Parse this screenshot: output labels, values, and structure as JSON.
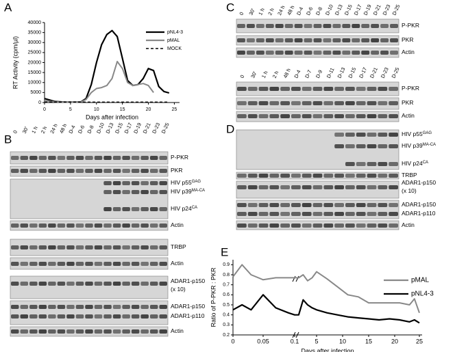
{
  "panel_labels": [
    "A",
    "B",
    "C",
    "D",
    "E"
  ],
  "chart_data": [
    {
      "type": "line",
      "x": [
        0,
        2,
        4,
        6,
        7,
        8,
        9,
        10,
        11,
        12,
        13,
        14,
        15,
        16,
        17,
        18,
        19,
        20,
        21,
        22,
        23,
        24
      ],
      "xlabel": "Days after infection",
      "ylabel": "RT Activity (cpm/µl)",
      "xlim": [
        0,
        26
      ],
      "xticks": [
        0,
        5,
        10,
        15,
        20,
        25
      ],
      "ylim": [
        0,
        40000
      ],
      "yticks": [
        0,
        5000,
        10000,
        15000,
        20000,
        25000,
        30000,
        35000,
        40000
      ],
      "series": [
        {
          "name": "pNL4-3",
          "color": "#000000",
          "values": [
            2000,
            500,
            200,
            200,
            300,
            2000,
            9000,
            20000,
            29000,
            34000,
            36000,
            33000,
            22000,
            11000,
            8500,
            9000,
            12000,
            17000,
            16000,
            8000,
            5500,
            4800
          ]
        },
        {
          "name": "pMAL",
          "color": "#888888",
          "values": [
            1000,
            300,
            200,
            200,
            300,
            1500,
            5000,
            7000,
            7500,
            8500,
            12000,
            20500,
            17000,
            10000,
            8500,
            9000,
            9500,
            8500,
            5000,
            null,
            null,
            null
          ]
        },
        {
          "name": "MOCK",
          "color": "#000000",
          "dash": true,
          "values": [
            200,
            200,
            200,
            200,
            200,
            200,
            200,
            200,
            200,
            200,
            200,
            200,
            200,
            200,
            200,
            200,
            200,
            200,
            200,
            200,
            200,
            200
          ]
        }
      ]
    },
    {
      "type": "line",
      "x": [
        0,
        0.015,
        0.03,
        0.05,
        0.07,
        0.09,
        0.1,
        1,
        2,
        3,
        4,
        5,
        7,
        9,
        11,
        13,
        15,
        17,
        19,
        21,
        23,
        24,
        25
      ],
      "xlabel": "Days after infection",
      "ylabel": "Ratio of P-PKR : PKR",
      "xlim": [
        0,
        25
      ],
      "xticks": [
        0,
        0.05,
        0.1,
        5,
        10,
        15,
        20,
        25
      ],
      "ylim": [
        0.2,
        0.95
      ],
      "yticks": [
        0.2,
        0.3,
        0.4,
        0.5,
        0.6,
        0.7,
        0.8,
        0.9
      ],
      "series": [
        {
          "name": "pMAL",
          "color": "#888888",
          "values": [
            0.78,
            0.9,
            0.8,
            0.75,
            0.77,
            0.77,
            0.77,
            0.77,
            0.8,
            0.74,
            0.77,
            0.83,
            0.76,
            0.68,
            0.6,
            0.58,
            0.52,
            0.52,
            0.52,
            0.52,
            0.5,
            0.56,
            0.42
          ]
        },
        {
          "name": "pNL4-3",
          "color": "#000000",
          "values": [
            0.45,
            0.5,
            0.45,
            0.6,
            0.47,
            0.42,
            0.4,
            0.4,
            0.55,
            0.5,
            0.47,
            0.45,
            0.42,
            0.4,
            0.38,
            0.37,
            0.36,
            0.35,
            0.36,
            0.35,
            0.33,
            0.35,
            0.32
          ]
        }
      ]
    }
  ],
  "blots": {
    "B": {
      "lanes": [
        "0",
        "30'",
        "1 h",
        "2 h",
        "24 h",
        "48 h",
        "D-4",
        "D-6",
        "D-8",
        "D-10",
        "D-13",
        "D-15",
        "D-17",
        "D-19",
        "D-21",
        "D-23",
        "D-25"
      ],
      "rows": [
        {
          "text": "P-PKR"
        },
        {
          "text": "PKR"
        },
        {
          "text": "HIV p55",
          "sup": "GAG"
        },
        {
          "text": "HIV p39",
          "sup": "MA-CA"
        },
        {
          "text": "HIV p24",
          "sup": "CA"
        },
        {
          "text": "Actin"
        },
        {
          "text": "TRBP"
        },
        {
          "text": "Actin"
        },
        {
          "text": "ADAR1-p150"
        },
        {
          "text": "(x 10)"
        },
        {
          "text": "ADAR1-p150"
        },
        {
          "text": "ADAR1-p110"
        },
        {
          "text": "Actin"
        }
      ]
    },
    "C": {
      "lanes": [
        "0",
        "30'",
        "1 h",
        "2 h",
        "24 h",
        "48 h",
        "D-4",
        "D-6",
        "D-8",
        "D-10",
        "D-13",
        "D-15",
        "D-17",
        "D-19",
        "D-21",
        "D-23",
        "D-25"
      ],
      "rows": [
        {
          "text": "P-PKR"
        },
        {
          "text": "PKR"
        },
        {
          "text": "Actin"
        }
      ]
    },
    "D": {
      "lanes": [
        "0",
        "30'",
        "1 h",
        "2 h",
        "48 h",
        "D-4",
        "D-7",
        "D-9",
        "D-11",
        "D-13",
        "D-15",
        "D-17",
        "D-21",
        "D-23",
        "D-25"
      ],
      "rows": [
        {
          "text": "P-PKR"
        },
        {
          "text": "PKR"
        },
        {
          "text": "Actin"
        },
        {
          "text": "HIV p55",
          "sup": "GAG"
        },
        {
          "text": "HIV p39",
          "sup": "MA-CA"
        },
        {
          "text": "HIV p24",
          "sup": "CA"
        },
        {
          "text": "TRBP"
        },
        {
          "text": "ADAR1-p150"
        },
        {
          "text": "(x 10)"
        },
        {
          "text": "ADAR1-p150"
        },
        {
          "text": "ADAR1-p110"
        },
        {
          "text": "Actin"
        }
      ]
    }
  }
}
